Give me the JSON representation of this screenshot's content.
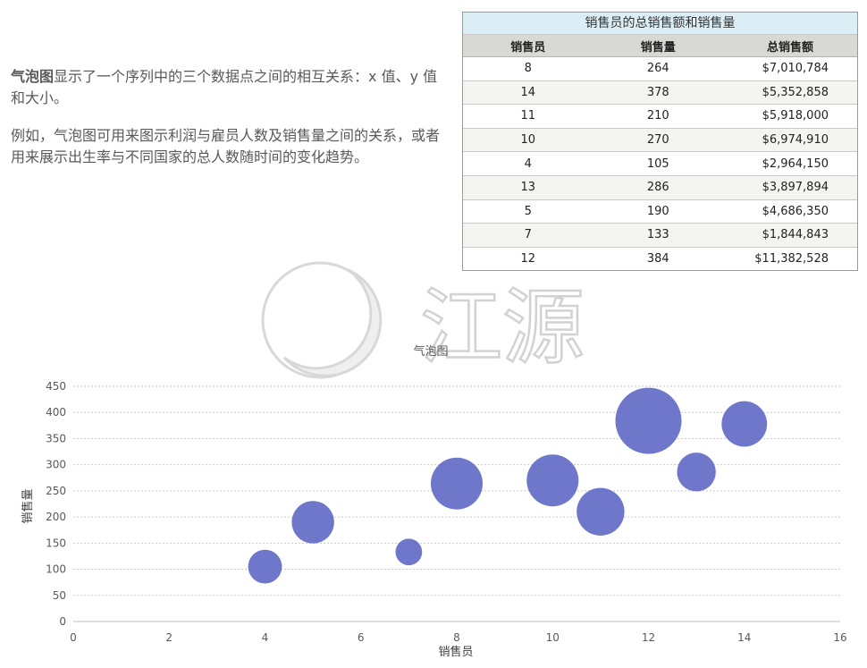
{
  "intro": {
    "p1_lead": "气泡图",
    "p1_rest": "显示了一个序列中的三个数据点之间的相互关系：x 值、y 值和大小。",
    "p2": "例如，气泡图可用来图示利润与雇员人数及销售量之间的关系，或者用来展示出生率与不同国家的总人数随时间的变化趋势。"
  },
  "table": {
    "title": "销售员的总销售额和销售量",
    "headers": [
      "销售员",
      "销售量",
      "总销售额"
    ],
    "rows": [
      [
        "8",
        "264",
        "$7,010,784"
      ],
      [
        "14",
        "378",
        "$5,352,858"
      ],
      [
        "11",
        "210",
        "$5,918,000"
      ],
      [
        "10",
        "270",
        "$6,974,910"
      ],
      [
        "4",
        "105",
        "$2,964,150"
      ],
      [
        "13",
        "286",
        "$3,897,894"
      ],
      [
        "5",
        "190",
        "$4,686,350"
      ],
      [
        "7",
        "133",
        "$1,844,843"
      ],
      [
        "12",
        "384",
        "$11,382,528"
      ]
    ]
  },
  "watermark": {
    "text": "江源"
  },
  "chart_data": {
    "type": "bubble",
    "title": "气泡图",
    "xlabel": "销售员",
    "ylabel": "销售量",
    "xlim": [
      0,
      16
    ],
    "ylim": [
      0,
      450
    ],
    "xticks": [
      0,
      2,
      4,
      6,
      8,
      10,
      12,
      14,
      16
    ],
    "yticks": [
      0,
      50,
      100,
      150,
      200,
      250,
      300,
      350,
      400,
      450
    ],
    "grid": true,
    "bubble_color": "#5b64c4",
    "points": [
      {
        "x": 8,
        "y": 264,
        "size": 7010784
      },
      {
        "x": 14,
        "y": 378,
        "size": 5352858
      },
      {
        "x": 11,
        "y": 210,
        "size": 5918000
      },
      {
        "x": 10,
        "y": 270,
        "size": 6974910
      },
      {
        "x": 4,
        "y": 105,
        "size": 2964150
      },
      {
        "x": 13,
        "y": 286,
        "size": 3897894
      },
      {
        "x": 5,
        "y": 190,
        "size": 4686350
      },
      {
        "x": 7,
        "y": 133,
        "size": 1844843
      },
      {
        "x": 12,
        "y": 384,
        "size": 11382528
      }
    ]
  }
}
